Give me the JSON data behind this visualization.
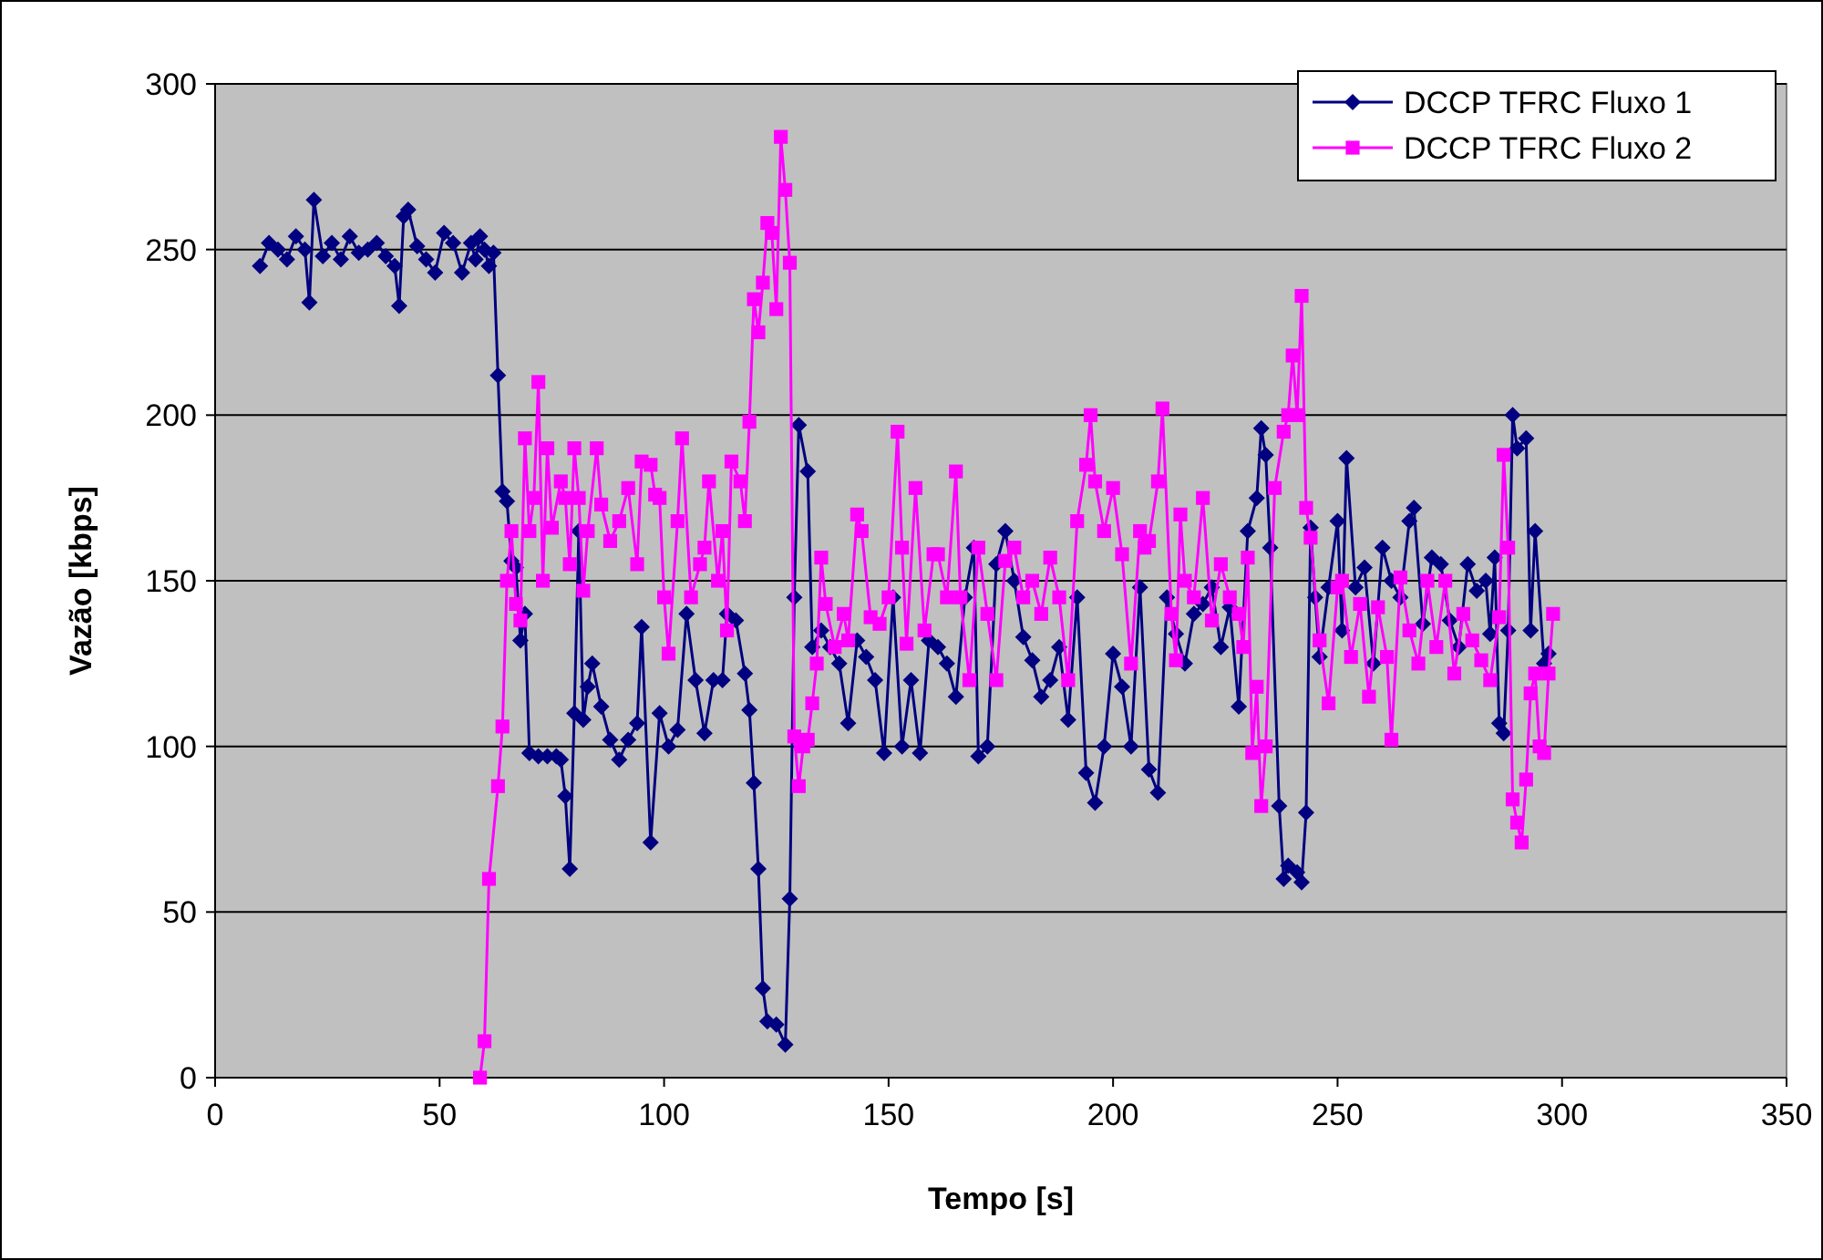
{
  "chart_data": {
    "type": "line",
    "xlabel": "Tempo [s]",
    "ylabel": "Vazão [kbps]",
    "xlim": [
      0,
      350
    ],
    "xticks": [
      0,
      50,
      100,
      150,
      200,
      250,
      300,
      350
    ],
    "ylim": [
      0,
      300
    ],
    "yticks": [
      0,
      50,
      100,
      150,
      200,
      250,
      300
    ],
    "grid": "y",
    "legend": "top right",
    "line_style": "solid",
    "series": [
      {
        "name": "DCCP TFRC Fluxo 1",
        "color": "#000080",
        "marker": "diamond",
        "x": [
          10,
          12,
          14,
          16,
          18,
          20,
          21,
          22,
          24,
          26,
          28,
          30,
          32,
          34,
          36,
          38,
          40,
          41,
          42,
          43,
          45,
          47,
          49,
          51,
          53,
          55,
          57,
          58,
          59,
          60,
          61,
          62,
          63,
          64,
          65,
          66,
          67,
          68,
          69,
          70,
          72,
          74,
          76,
          77,
          78,
          79,
          80,
          81,
          82,
          83,
          84,
          86,
          88,
          90,
          92,
          94,
          95,
          97,
          99,
          101,
          103,
          105,
          107,
          109,
          111,
          113,
          114,
          116,
          118,
          119,
          120,
          121,
          122,
          123,
          125,
          127,
          128,
          129,
          130,
          132,
          133,
          135,
          137,
          139,
          141,
          143,
          145,
          147,
          149,
          151,
          153,
          155,
          157,
          159,
          161,
          163,
          165,
          167,
          169,
          170,
          172,
          174,
          176,
          178,
          180,
          182,
          184,
          186,
          188,
          190,
          192,
          194,
          196,
          198,
          200,
          202,
          204,
          206,
          208,
          210,
          212,
          214,
          216,
          218,
          220,
          222,
          224,
          226,
          228,
          230,
          232,
          233,
          234,
          235,
          237,
          238,
          239,
          241,
          242,
          243,
          244,
          245,
          246,
          248,
          250,
          251,
          252,
          254,
          256,
          258,
          260,
          262,
          264,
          266,
          267,
          269,
          271,
          273,
          275,
          277,
          279,
          281,
          283,
          284,
          285,
          286,
          287,
          288,
          289,
          290,
          292,
          293,
          294,
          296,
          297
        ],
        "values": [
          245,
          252,
          250,
          247,
          254,
          250,
          234,
          265,
          248,
          252,
          247,
          254,
          249,
          250,
          252,
          248,
          245,
          233,
          260,
          262,
          251,
          247,
          243,
          255,
          252,
          243,
          252,
          247,
          254,
          250,
          245,
          249,
          212,
          177,
          174,
          156,
          154,
          132,
          140,
          98,
          97,
          97,
          97,
          96,
          85,
          63,
          110,
          165,
          108,
          118,
          125,
          112,
          102,
          96,
          102,
          107,
          136,
          71,
          110,
          100,
          105,
          140,
          120,
          104,
          120,
          120,
          140,
          138,
          122,
          111,
          89,
          63,
          27,
          17,
          16,
          10,
          54,
          145,
          197,
          183,
          130,
          135,
          130,
          125,
          107,
          132,
          127,
          120,
          98,
          145,
          100,
          120,
          98,
          132,
          130,
          125,
          115,
          145,
          160,
          97,
          100,
          155,
          165,
          150,
          133,
          126,
          115,
          120,
          130,
          108,
          145,
          92,
          83,
          100,
          128,
          118,
          100,
          148,
          93,
          86,
          145,
          134,
          125,
          140,
          143,
          148,
          130,
          142,
          112,
          165,
          175,
          196,
          188,
          160,
          82,
          60,
          64,
          62,
          59,
          80,
          166,
          145,
          127,
          148,
          168,
          135,
          187,
          148,
          154,
          125,
          160,
          150,
          145,
          168,
          172,
          137,
          157,
          155,
          138,
          130,
          155,
          147,
          150,
          134,
          157,
          107,
          104,
          135,
          200,
          190,
          193,
          135,
          165,
          125,
          128
        ]
      },
      {
        "name": "DCCP TFRC Fluxo 2",
        "color": "#ff00ff",
        "marker": "square",
        "x": [
          59,
          60,
          61,
          63,
          64,
          65,
          66,
          67,
          68,
          69,
          70,
          71,
          72,
          73,
          74,
          75,
          77,
          78,
          79,
          80,
          81,
          82,
          83,
          85,
          86,
          88,
          90,
          92,
          94,
          95,
          97,
          98,
          99,
          100,
          101,
          103,
          104,
          106,
          108,
          109,
          110,
          112,
          113,
          114,
          115,
          117,
          118,
          119,
          120,
          121,
          122,
          123,
          124,
          125,
          126,
          127,
          128,
          129,
          130,
          131,
          132,
          133,
          134,
          135,
          136,
          138,
          140,
          141,
          143,
          144,
          146,
          148,
          150,
          152,
          153,
          154,
          156,
          158,
          160,
          161,
          163,
          165,
          166,
          168,
          170,
          172,
          174,
          176,
          178,
          180,
          182,
          184,
          186,
          188,
          190,
          192,
          194,
          195,
          196,
          198,
          200,
          202,
          204,
          206,
          207,
          208,
          210,
          211,
          213,
          214,
          215,
          216,
          218,
          220,
          222,
          224,
          226,
          228,
          229,
          230,
          231,
          232,
          233,
          234,
          236,
          238,
          239,
          240,
          241,
          242,
          243,
          244,
          246,
          248,
          250,
          251,
          253,
          255,
          257,
          259,
          261,
          262,
          264,
          266,
          268,
          270,
          272,
          274,
          276,
          278,
          280,
          282,
          284,
          286,
          287,
          288,
          289,
          290,
          291,
          292,
          293,
          294,
          295,
          296,
          297,
          298
        ],
        "values": [
          0,
          11,
          60,
          88,
          106,
          150,
          165,
          143,
          138,
          193,
          165,
          175,
          210,
          150,
          190,
          166,
          180,
          175,
          155,
          190,
          175,
          147,
          165,
          190,
          173,
          162,
          168,
          178,
          155,
          186,
          185,
          176,
          175,
          145,
          128,
          168,
          193,
          145,
          155,
          160,
          180,
          150,
          165,
          135,
          186,
          180,
          168,
          198,
          235,
          225,
          240,
          258,
          255,
          232,
          284,
          268,
          246,
          103,
          88,
          100,
          102,
          113,
          125,
          157,
          143,
          130,
          140,
          132,
          170,
          165,
          139,
          137,
          145,
          195,
          160,
          131,
          178,
          135,
          158,
          158,
          145,
          183,
          145,
          120,
          160,
          140,
          120,
          156,
          160,
          145,
          150,
          140,
          157,
          145,
          120,
          168,
          185,
          200,
          180,
          165,
          178,
          158,
          125,
          165,
          160,
          162,
          180,
          202,
          140,
          126,
          170,
          150,
          145,
          175,
          138,
          155,
          145,
          140,
          130,
          157,
          98,
          118,
          82,
          100,
          178,
          195,
          200,
          218,
          200,
          236,
          172,
          163,
          132,
          113,
          148,
          150,
          127,
          143,
          115,
          142,
          127,
          102,
          151,
          135,
          125,
          150,
          130,
          150,
          122,
          140,
          132,
          126,
          120,
          139,
          188,
          160,
          84,
          77,
          71,
          90,
          116,
          122,
          100,
          98,
          122,
          140
        ]
      }
    ]
  }
}
